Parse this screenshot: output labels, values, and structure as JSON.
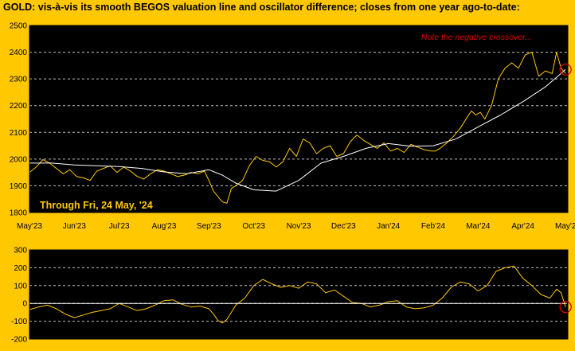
{
  "chart_data": {
    "type": "line",
    "title": "GOLD:  vis-à-vis its smooth BEGOS valuation line and oscillator difference; closes from one year ago-to-date:",
    "period_label": "Through Fri, 24 May, '24",
    "annotation": "Note the negative crossover...",
    "months": [
      "May'23",
      "Jun'23",
      "Jul'23",
      "Aug'23",
      "Sep'23",
      "Oct'23",
      "Nov'23",
      "Dec'23",
      "Jan'24",
      "Feb'24",
      "Mar'24",
      "Apr'24",
      "May'24"
    ],
    "colors": {
      "background": "#FFC800",
      "plot": "#000000",
      "price": "#FFC800",
      "valuation": "#FFFFFF",
      "grid": "#FFFFFF",
      "annotation": "#E00000"
    },
    "upper": {
      "ylim": [
        1800,
        2500
      ],
      "yticks": [
        1800,
        1900,
        2000,
        2100,
        2200,
        2300,
        2400,
        2500
      ],
      "grid": true,
      "series": [
        {
          "key": "price",
          "x": [
            0,
            0.15,
            0.3,
            0.45,
            0.6,
            0.75,
            0.9,
            1.05,
            1.2,
            1.35,
            1.5,
            1.65,
            1.8,
            1.95,
            2.1,
            2.25,
            2.4,
            2.55,
            2.7,
            2.85,
            3.0,
            3.15,
            3.3,
            3.45,
            3.6,
            3.75,
            3.9,
            4.0,
            4.1,
            4.2,
            4.3,
            4.4,
            4.5,
            4.6,
            4.75,
            4.9,
            5.05,
            5.2,
            5.35,
            5.5,
            5.65,
            5.8,
            5.95,
            6.1,
            6.25,
            6.4,
            6.55,
            6.7,
            6.85,
            7.0,
            7.15,
            7.3,
            7.45,
            7.6,
            7.75,
            7.9,
            8.05,
            8.2,
            8.35,
            8.5,
            8.65,
            8.8,
            8.95,
            9.05,
            9.15,
            9.3,
            9.45,
            9.6,
            9.75,
            9.85,
            9.95,
            10.05,
            10.15,
            10.3,
            10.45,
            10.6,
            10.75,
            10.9,
            11.05,
            11.2,
            11.35,
            11.5,
            11.65,
            11.75,
            11.85,
            11.95
          ],
          "y": [
            1950,
            1970,
            1998,
            1985,
            1965,
            1945,
            1960,
            1935,
            1930,
            1920,
            1955,
            1965,
            1975,
            1950,
            1970,
            1955,
            1935,
            1925,
            1945,
            1960,
            1955,
            1945,
            1935,
            1940,
            1950,
            1945,
            1955,
            1920,
            1880,
            1860,
            1840,
            1835,
            1890,
            1900,
            1920,
            1975,
            2010,
            1995,
            1990,
            1970,
            1990,
            2040,
            2010,
            2075,
            2060,
            2020,
            2040,
            2050,
            2010,
            2020,
            2065,
            2090,
            2070,
            2055,
            2040,
            2060,
            2030,
            2040,
            2025,
            2055,
            2045,
            2035,
            2030,
            2030,
            2040,
            2060,
            2085,
            2115,
            2155,
            2180,
            2165,
            2175,
            2150,
            2200,
            2300,
            2340,
            2360,
            2340,
            2390,
            2400,
            2310,
            2330,
            2320,
            2400,
            2340,
            2320
          ],
          "stroke": "#FFC800",
          "width": 1
        },
        {
          "key": "valuation",
          "x": [
            0,
            0.5,
            1.0,
            1.5,
            2.0,
            2.5,
            3.0,
            3.5,
            4.0,
            4.3,
            4.6,
            5.0,
            5.5,
            6.0,
            6.5,
            7.0,
            7.5,
            8.0,
            8.5,
            9.0,
            9.5,
            10.0,
            10.5,
            11.0,
            11.5,
            11.95
          ],
          "y": [
            1985,
            1985,
            1978,
            1975,
            1972,
            1965,
            1952,
            1945,
            1960,
            1940,
            1910,
            1885,
            1880,
            1920,
            1985,
            2010,
            2040,
            2058,
            2048,
            2050,
            2075,
            2120,
            2165,
            2215,
            2270,
            2335
          ],
          "stroke": "#FFFFFF",
          "width": 1
        }
      ],
      "marker": {
        "x": 11.95,
        "y": 2335,
        "color": "#E00000"
      }
    },
    "lower": {
      "ylim": [
        -200,
        300
      ],
      "yticks": [
        -200,
        -100,
        0,
        100,
        200,
        300
      ],
      "grid": true,
      "series": [
        {
          "key": "oscillator",
          "x": [
            0,
            0.2,
            0.4,
            0.6,
            0.8,
            1.0,
            1.2,
            1.4,
            1.6,
            1.8,
            2.0,
            2.2,
            2.4,
            2.6,
            2.8,
            3.0,
            3.2,
            3.4,
            3.6,
            3.8,
            4.0,
            4.1,
            4.2,
            4.3,
            4.4,
            4.5,
            4.6,
            4.8,
            5.0,
            5.2,
            5.4,
            5.6,
            5.8,
            6.0,
            6.2,
            6.4,
            6.6,
            6.8,
            7.0,
            7.2,
            7.4,
            7.6,
            7.8,
            8.0,
            8.2,
            8.4,
            8.6,
            8.8,
            9.0,
            9.2,
            9.4,
            9.6,
            9.8,
            10.0,
            10.2,
            10.4,
            10.6,
            10.8,
            11.0,
            11.2,
            11.4,
            11.6,
            11.75,
            11.85,
            11.95
          ],
          "y": [
            -35,
            -20,
            -10,
            -30,
            -60,
            -80,
            -65,
            -50,
            -40,
            -30,
            0,
            -20,
            -40,
            -30,
            -10,
            15,
            20,
            -5,
            -20,
            -15,
            -30,
            -60,
            -95,
            -110,
            -90,
            -50,
            -10,
            30,
            100,
            135,
            110,
            90,
            100,
            85,
            120,
            110,
            60,
            75,
            40,
            5,
            0,
            -20,
            -10,
            10,
            15,
            -20,
            -30,
            -25,
            -10,
            30,
            90,
            120,
            110,
            70,
            100,
            180,
            200,
            210,
            140,
            100,
            50,
            30,
            80,
            60,
            -20
          ],
          "stroke": "#FFC800",
          "width": 1
        },
        {
          "key": "zero",
          "x": [
            0,
            11.95
          ],
          "y": [
            0,
            0
          ],
          "stroke": "#FFFFFF",
          "width": 1
        }
      ],
      "marker": {
        "x": 11.95,
        "y": -20,
        "color": "#E00000"
      }
    }
  }
}
